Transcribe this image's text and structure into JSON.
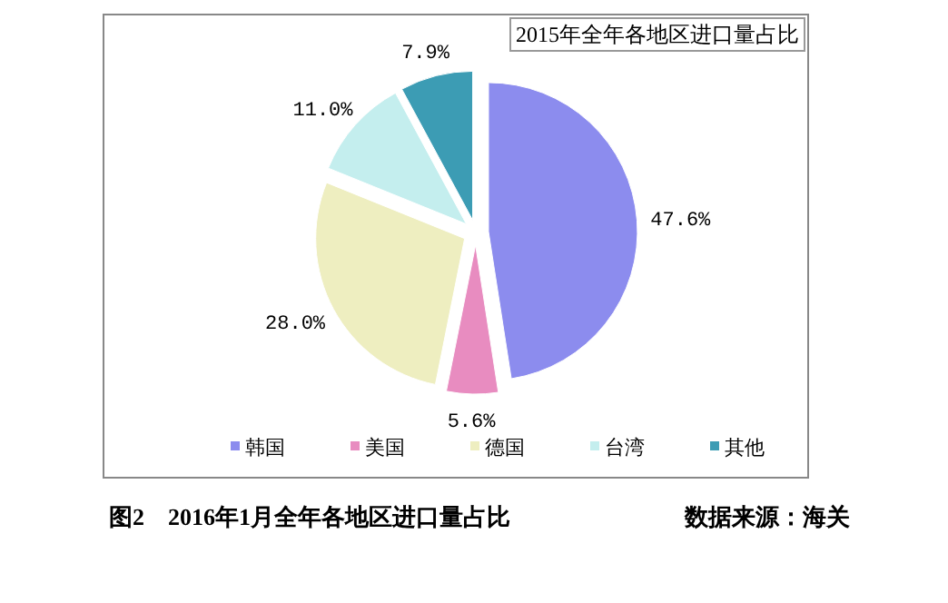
{
  "chart_data": {
    "type": "pie",
    "title": "2015年全年各地区进口量占比",
    "categories": [
      "韩国",
      "美国",
      "德国",
      "台湾",
      "其他"
    ],
    "values": [
      47.6,
      5.6,
      28.0,
      11.0,
      7.9
    ],
    "colors": [
      "#8c8cee",
      "#e88cc0",
      "#eeeec0",
      "#c4eeee",
      "#3c9cb4"
    ],
    "value_labels": [
      "47.6%",
      "5.6%",
      "28.0%",
      "11.0%",
      "7.9%"
    ],
    "legend": "bottom",
    "annotations": [
      "图2　2016年1月全年各地区进口量占比",
      "数据来源：海关"
    ]
  }
}
